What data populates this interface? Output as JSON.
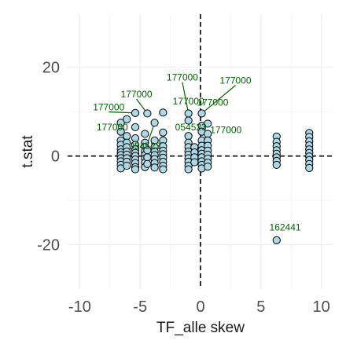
{
  "chart_data": {
    "type": "scatter",
    "xlabel": "TF_alle skew",
    "ylabel": "t.stat",
    "xlim": [
      -11,
      11
    ],
    "ylim": [
      -30,
      32
    ],
    "x_ticks": [
      -10,
      -5,
      0,
      5,
      10
    ],
    "x_tick_labels": [
      "-10",
      "-5",
      "0",
      "5",
      "10"
    ],
    "y_ticks": [
      -20,
      0,
      20
    ],
    "y_tick_labels": [
      "-20",
      "0",
      "20"
    ],
    "grid": true,
    "reference_lines": {
      "x": 0,
      "y": 0,
      "style": "dashed"
    },
    "colors": {
      "point_fill": "#add8e6",
      "point_stroke": "#000000",
      "annotation": "#006400",
      "grid": "#ebebeb",
      "reference_line": "#000000"
    },
    "points": [
      {
        "x": -6.6,
        "y": 7.5
      },
      {
        "x": -6.6,
        "y": 5.5
      },
      {
        "x": -6.6,
        "y": 3.5
      },
      {
        "x": -6.6,
        "y": 2.5
      },
      {
        "x": -6.6,
        "y": 1.5
      },
      {
        "x": -6.6,
        "y": 0.8
      },
      {
        "x": -6.6,
        "y": 0.2
      },
      {
        "x": -6.6,
        "y": -0.5
      },
      {
        "x": -6.6,
        "y": -1.2
      },
      {
        "x": -6.6,
        "y": -2
      },
      {
        "x": -6.6,
        "y": -2.8
      },
      {
        "x": -6.1,
        "y": 8.3
      },
      {
        "x": -6.1,
        "y": 4.5
      },
      {
        "x": -6.1,
        "y": 3
      },
      {
        "x": -6.1,
        "y": 2
      },
      {
        "x": -6.1,
        "y": 1
      },
      {
        "x": -6.1,
        "y": 0.3
      },
      {
        "x": -6.1,
        "y": -0.5
      },
      {
        "x": -6.1,
        "y": -1.3
      },
      {
        "x": -6.1,
        "y": -2.2
      },
      {
        "x": -5.4,
        "y": 9.7
      },
      {
        "x": -5.4,
        "y": 6.5
      },
      {
        "x": -5.4,
        "y": 4
      },
      {
        "x": -5.4,
        "y": 2.5
      },
      {
        "x": -5.4,
        "y": 1.5
      },
      {
        "x": -5.4,
        "y": 0.7
      },
      {
        "x": -5.4,
        "y": 0
      },
      {
        "x": -5.4,
        "y": -0.8
      },
      {
        "x": -5.4,
        "y": -1.6
      },
      {
        "x": -5.4,
        "y": -2.5
      },
      {
        "x": -5.4,
        "y": -3
      },
      {
        "x": -4.6,
        "y": 5
      },
      {
        "x": -4.6,
        "y": 3
      },
      {
        "x": -4.6,
        "y": 2
      },
      {
        "x": -4.6,
        "y": 1
      },
      {
        "x": -4.6,
        "y": 0.2
      },
      {
        "x": -4.6,
        "y": -0.6
      },
      {
        "x": -4.6,
        "y": -1.5
      },
      {
        "x": -4.6,
        "y": -2.5
      },
      {
        "x": -4.4,
        "y": 9.6
      },
      {
        "x": -4.4,
        "y": 1.3
      },
      {
        "x": -4.4,
        "y": -0.3
      },
      {
        "x": -4.4,
        "y": -1.8
      },
      {
        "x": -3.8,
        "y": 7.5
      },
      {
        "x": -3.8,
        "y": 3.5
      },
      {
        "x": -3.8,
        "y": 2
      },
      {
        "x": -3.8,
        "y": 1
      },
      {
        "x": -3.8,
        "y": 0.2
      },
      {
        "x": -3.8,
        "y": -0.7
      },
      {
        "x": -3.8,
        "y": -1.6
      },
      {
        "x": -3.8,
        "y": -2.6
      },
      {
        "x": -3.1,
        "y": 9.8
      },
      {
        "x": -3.1,
        "y": 5.3
      },
      {
        "x": -3.1,
        "y": 3.5
      },
      {
        "x": -3.1,
        "y": 2.2
      },
      {
        "x": -3.1,
        "y": 1.2
      },
      {
        "x": -3.1,
        "y": 0.4
      },
      {
        "x": -3.1,
        "y": -0.4
      },
      {
        "x": -3.1,
        "y": -1.3
      },
      {
        "x": -3.1,
        "y": -2.2
      },
      {
        "x": -3.1,
        "y": -3
      },
      {
        "x": -1,
        "y": 9.6
      },
      {
        "x": -1,
        "y": 8
      },
      {
        "x": -1,
        "y": 4.5
      },
      {
        "x": -1,
        "y": 3
      },
      {
        "x": -1,
        "y": 2
      },
      {
        "x": -1,
        "y": 1
      },
      {
        "x": -1,
        "y": 0.3
      },
      {
        "x": -1,
        "y": -0.5
      },
      {
        "x": -1,
        "y": -1.3
      },
      {
        "x": -1,
        "y": -2.2
      },
      {
        "x": -1,
        "y": -3
      },
      {
        "x": -0.5,
        "y": 2
      },
      {
        "x": -0.5,
        "y": 0.8
      },
      {
        "x": -0.5,
        "y": -0.3
      },
      {
        "x": -0.5,
        "y": -1.4
      },
      {
        "x": 0.1,
        "y": 9.6
      },
      {
        "x": 0.1,
        "y": 6.8
      },
      {
        "x": 0.1,
        "y": 5.5
      },
      {
        "x": 0.1,
        "y": 3.5
      },
      {
        "x": 0.1,
        "y": 2.3
      },
      {
        "x": 0.1,
        "y": 1.3
      },
      {
        "x": 0.1,
        "y": 0.5
      },
      {
        "x": 0.1,
        "y": -0.3
      },
      {
        "x": 0.1,
        "y": -1.2
      },
      {
        "x": 0.1,
        "y": -2
      },
      {
        "x": 0.1,
        "y": -2.8
      },
      {
        "x": 0.6,
        "y": 7.3
      },
      {
        "x": 0.6,
        "y": 5
      },
      {
        "x": 0.6,
        "y": 3.5
      },
      {
        "x": 0.6,
        "y": 2.3
      },
      {
        "x": 0.6,
        "y": 1.2
      },
      {
        "x": 0.6,
        "y": 0.3
      },
      {
        "x": 0.6,
        "y": -0.6
      },
      {
        "x": 0.6,
        "y": -1.5
      },
      {
        "x": 0.6,
        "y": -2.4
      },
      {
        "x": 6.3,
        "y": 4.4
      },
      {
        "x": 6.3,
        "y": 3.2
      },
      {
        "x": 6.3,
        "y": 2.2
      },
      {
        "x": 6.3,
        "y": 1.3
      },
      {
        "x": 6.3,
        "y": 0.5
      },
      {
        "x": 6.3,
        "y": -0.3
      },
      {
        "x": 6.3,
        "y": -1.1
      },
      {
        "x": 6.3,
        "y": -2
      },
      {
        "x": 9,
        "y": 5.2
      },
      {
        "x": 9,
        "y": 4.3
      },
      {
        "x": 9,
        "y": 3.3
      },
      {
        "x": 9,
        "y": 2.4
      },
      {
        "x": 9,
        "y": 1.5
      },
      {
        "x": 9,
        "y": 0.7
      },
      {
        "x": 9,
        "y": -0.1
      },
      {
        "x": 9,
        "y": -0.9
      },
      {
        "x": 9,
        "y": -1.8
      },
      {
        "x": 9,
        "y": -2.7
      },
      {
        "x": 6.3,
        "y": -19
      }
    ],
    "annotations": [
      {
        "text": "177000",
        "x": -5.3,
        "y": 13.2,
        "line_to": [
          -4.4,
          9.6
        ]
      },
      {
        "text": "177000",
        "x": -1.5,
        "y": 17.0,
        "line_to": [
          -1,
          9.6
        ]
      },
      {
        "text": "177000",
        "x": 2.9,
        "y": 16.3,
        "line_to": [
          0.1,
          9.6
        ]
      },
      {
        "text": "177000",
        "x": -1.0,
        "y": 11.6,
        "line_to": null
      },
      {
        "text": "177000",
        "x": 1.0,
        "y": 11.4,
        "line_to": null
      },
      {
        "text": "177000",
        "x": -7.6,
        "y": 10.3,
        "line_to": [
          -5.4,
          9.7
        ]
      },
      {
        "text": "177000",
        "x": -7.3,
        "y": 5.8,
        "line_to": null
      },
      {
        "text": "054523",
        "x": -0.8,
        "y": 5.8,
        "line_to": null
      },
      {
        "text": "177000",
        "x": 2.1,
        "y": 5.2,
        "line_to": null
      },
      {
        "text": "054523",
        "x": -4.6,
        "y": 1.5,
        "line_to": [
          -3.8,
          7.5
        ]
      },
      {
        "text": "162441",
        "x": 7.0,
        "y": -16.8,
        "line_to": null
      }
    ]
  }
}
